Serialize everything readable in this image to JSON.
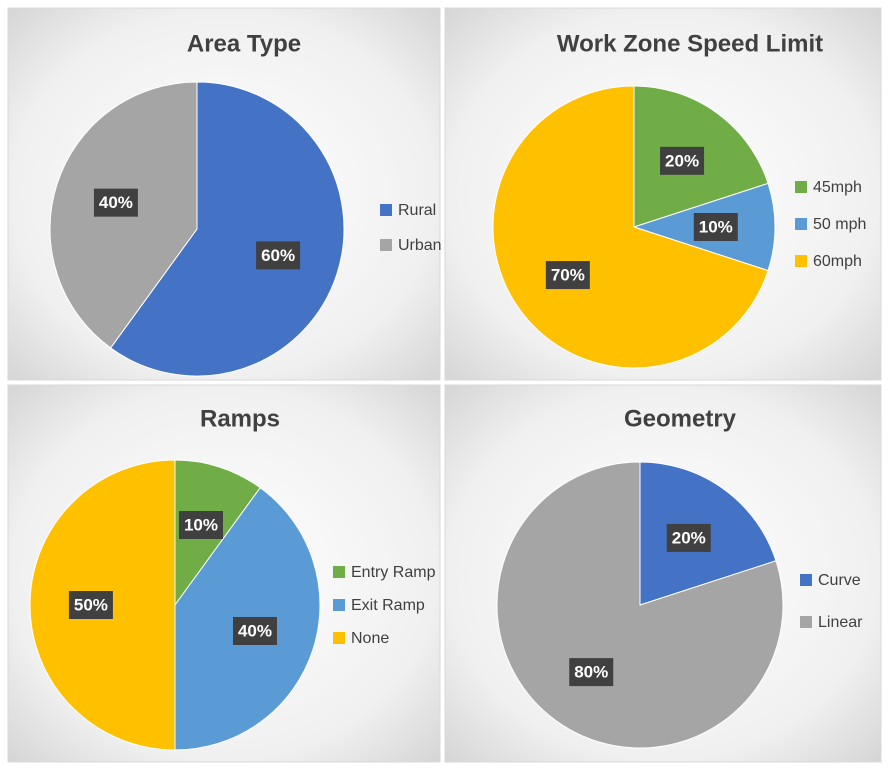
{
  "chart_data": [
    {
      "type": "pie",
      "title": "Area Type",
      "categories": [
        "Rural",
        "Urban"
      ],
      "values": [
        60,
        40
      ],
      "value_labels": [
        "60%",
        "40%"
      ],
      "colors": [
        "#4472c4",
        "#a5a5a5"
      ],
      "legend": "right"
    },
    {
      "type": "pie",
      "title": "Work Zone Speed Limit",
      "categories": [
        "45mph",
        "50 mph",
        "60mph"
      ],
      "values": [
        20,
        10,
        70
      ],
      "value_labels": [
        "20%",
        "10%",
        "70%"
      ],
      "colors": [
        "#70ad47",
        "#5b9bd5",
        "#ffc000"
      ],
      "legend": "right"
    },
    {
      "type": "pie",
      "title": "Ramps",
      "categories": [
        "Entry Ramp",
        "Exit Ramp",
        "None"
      ],
      "values": [
        10,
        40,
        50
      ],
      "value_labels": [
        "10%",
        "40%",
        "50%"
      ],
      "colors": [
        "#70ad47",
        "#5b9bd5",
        "#ffc000"
      ],
      "legend": "right"
    },
    {
      "type": "pie",
      "title": "Geometry",
      "categories": [
        "Curve",
        "Linear"
      ],
      "values": [
        20,
        80
      ],
      "value_labels": [
        "20%",
        "80%"
      ],
      "colors": [
        "#4472c4",
        "#a5a5a5"
      ],
      "legend": "right"
    }
  ]
}
